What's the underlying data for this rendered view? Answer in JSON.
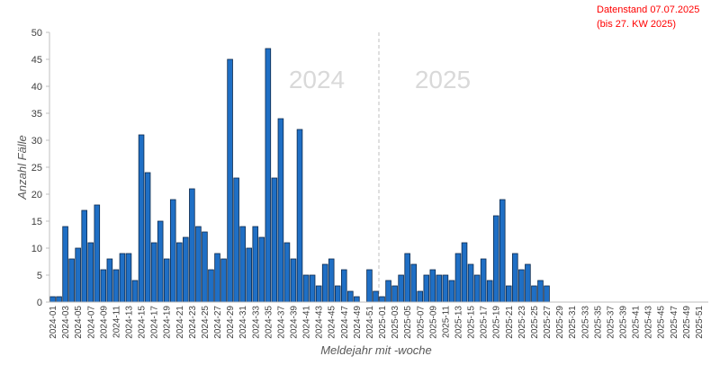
{
  "chart_data": {
    "type": "bar",
    "title": "",
    "xlabel": "Meldejahr mit -woche",
    "ylabel": "Anzahl Fälle",
    "ylim": [
      0,
      50
    ],
    "yticks": [
      0,
      5,
      10,
      15,
      20,
      25,
      30,
      35,
      40,
      45,
      50
    ],
    "grid": false,
    "annotation": [
      "Datenstand 07.07.2025",
      "(bis 27. KW 2025)"
    ],
    "year_labels": [
      "2024",
      "2025"
    ],
    "year_separator_after": "2024-52",
    "bar_color": "#1F6FC5",
    "bar_edge_color": "#0D2A4D",
    "annotation_color": "#FF0000",
    "year_label_color": "#D9D9D9",
    "categories": [
      "2024-01",
      "2024-02",
      "2024-03",
      "2024-04",
      "2024-05",
      "2024-06",
      "2024-07",
      "2024-08",
      "2024-09",
      "2024-10",
      "2024-11",
      "2024-12",
      "2024-13",
      "2024-14",
      "2024-15",
      "2024-16",
      "2024-17",
      "2024-18",
      "2024-19",
      "2024-20",
      "2024-21",
      "2024-22",
      "2024-23",
      "2024-24",
      "2024-25",
      "2024-26",
      "2024-27",
      "2024-28",
      "2024-29",
      "2024-30",
      "2024-31",
      "2024-32",
      "2024-33",
      "2024-34",
      "2024-35",
      "2024-36",
      "2024-37",
      "2024-38",
      "2024-39",
      "2024-40",
      "2024-41",
      "2024-42",
      "2024-43",
      "2024-44",
      "2024-45",
      "2024-46",
      "2024-47",
      "2024-48",
      "2024-49",
      "2024-50",
      "2024-51",
      "2024-52",
      "2025-01",
      "2025-02",
      "2025-03",
      "2025-04",
      "2025-05",
      "2025-06",
      "2025-07",
      "2025-08",
      "2025-09",
      "2025-10",
      "2025-11",
      "2025-12",
      "2025-13",
      "2025-14",
      "2025-15",
      "2025-16",
      "2025-17",
      "2025-18",
      "2025-19",
      "2025-20",
      "2025-21",
      "2025-22",
      "2025-23",
      "2025-24",
      "2025-25",
      "2025-26",
      "2025-27",
      "2025-28",
      "2025-29",
      "2025-30",
      "2025-31",
      "2025-32",
      "2025-33",
      "2025-34",
      "2025-35",
      "2025-36",
      "2025-37",
      "2025-38",
      "2025-39",
      "2025-40",
      "2025-41",
      "2025-42",
      "2025-43",
      "2025-44",
      "2025-45",
      "2025-46",
      "2025-47",
      "2025-48",
      "2025-49",
      "2025-50",
      "2025-51",
      "2025-52"
    ],
    "values": [
      1,
      1,
      14,
      8,
      10,
      17,
      11,
      18,
      6,
      8,
      6,
      9,
      9,
      4,
      31,
      24,
      11,
      15,
      8,
      19,
      11,
      12,
      21,
      14,
      13,
      6,
      9,
      8,
      45,
      23,
      14,
      10,
      14,
      12,
      47,
      23,
      34,
      11,
      8,
      32,
      5,
      5,
      3,
      7,
      8,
      3,
      6,
      2,
      1,
      0,
      6,
      2,
      1,
      4,
      3,
      5,
      9,
      7,
      2,
      5,
      6,
      5,
      5,
      4,
      9,
      11,
      7,
      5,
      8,
      4,
      16,
      19,
      3,
      9,
      6,
      7,
      3,
      4,
      3,
      0,
      0,
      0,
      0,
      0,
      0,
      0,
      0,
      0,
      0,
      0,
      0,
      0,
      0,
      0,
      0,
      0,
      0,
      0,
      0,
      0,
      0,
      0,
      0,
      0
    ]
  }
}
